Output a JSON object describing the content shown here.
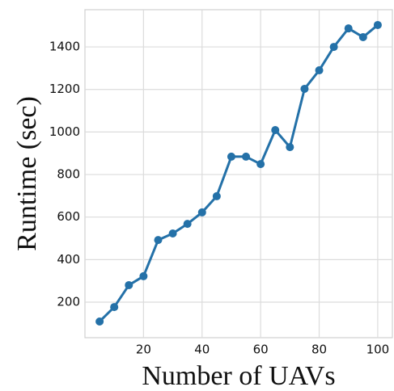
{
  "chart_data": {
    "type": "line",
    "x_label": "Number of UAVs",
    "y_label": "Runtime (sec)",
    "x": [
      5,
      10,
      15,
      20,
      25,
      30,
      35,
      40,
      45,
      50,
      55,
      60,
      65,
      70,
      75,
      80,
      85,
      90,
      95,
      100
    ],
    "series": [
      {
        "name": "Runtime",
        "color": "#2471a8",
        "values": [
          109,
          177,
          280,
          322,
          492,
          523,
          568,
          622,
          698,
          884,
          884,
          849,
          1009,
          929,
          1203,
          1290,
          1400,
          1487,
          1446,
          1503
        ]
      }
    ],
    "xlim": [
      0,
      105
    ],
    "xticks": [
      20,
      40,
      60,
      80,
      100
    ],
    "ylim": [
      33,
      1575
    ],
    "yticks": [
      200,
      400,
      600,
      800,
      1000,
      1200,
      1400
    ],
    "grid": true
  }
}
